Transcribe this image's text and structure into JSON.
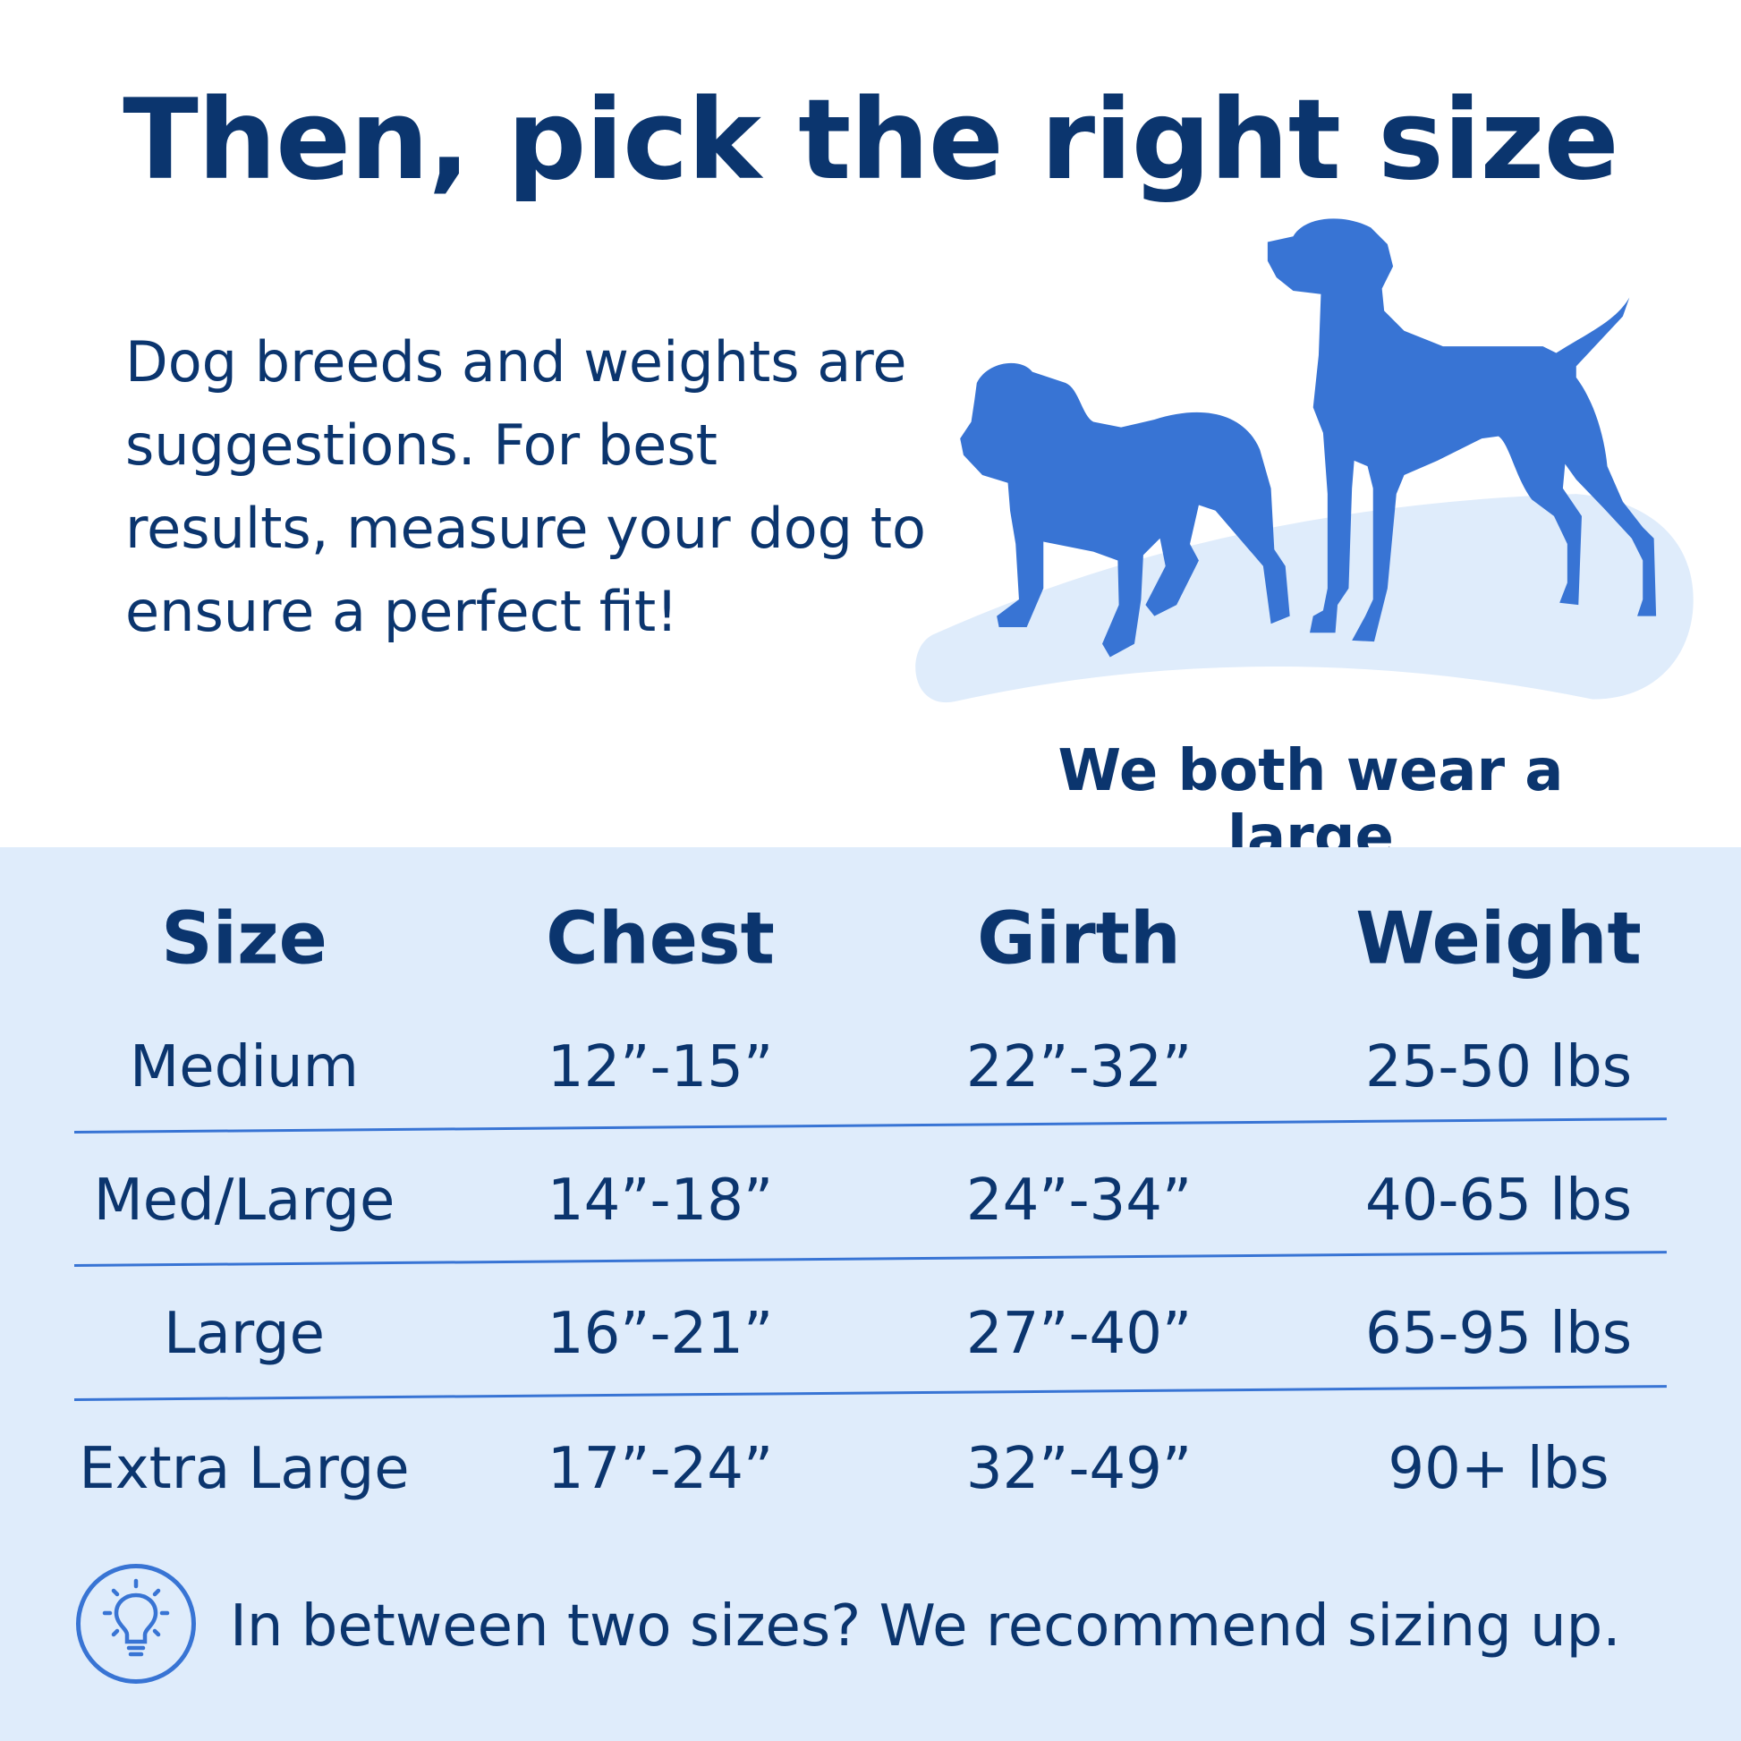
{
  "title": "Then, pick the right size",
  "intro": "Dog breeds and weights are suggestions. For best results, measure your dog to ensure a perfect fit!",
  "illustration": {
    "caption": "We both wear a large",
    "icon": "two-dogs-silhouette"
  },
  "colors": {
    "text": "#0b356e",
    "accent": "#3874d4",
    "band": "#dfecfb"
  },
  "table": {
    "headers": [
      "Size",
      "Chest",
      "Girth",
      "Weight"
    ],
    "rows": [
      [
        "Medium",
        "12”-15”",
        "22”-32”",
        "25-50 lbs"
      ],
      [
        "Med/Large",
        "14”-18”",
        "24”-34”",
        "40-65 lbs"
      ],
      [
        "Large",
        "16”-21”",
        "27”-40”",
        "65-95 lbs"
      ],
      [
        "Extra Large",
        "17”-24”",
        "32”-49”",
        "90+ lbs"
      ]
    ]
  },
  "tip": {
    "icon": "lightbulb-icon",
    "text": "In between two sizes? We recommend sizing up."
  }
}
